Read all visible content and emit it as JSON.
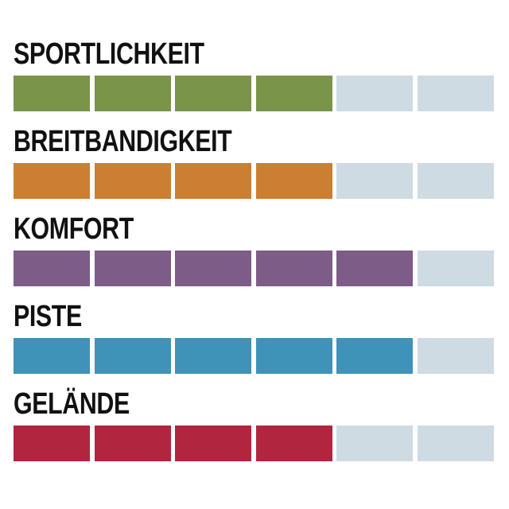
{
  "chart_data": {
    "type": "bar",
    "scale_max": 6,
    "empty_color": "#cfdbe3",
    "categories": [
      "SPORTLICHKEIT",
      "BREITBANDIGKEIT",
      "KOMFORT",
      "PISTE",
      "GELÄNDE"
    ],
    "values": [
      4,
      4,
      5,
      5,
      4
    ],
    "colors": [
      "#7a9449",
      "#cc7f32",
      "#7d5c87",
      "#3f92b8",
      "#b2253f"
    ]
  }
}
